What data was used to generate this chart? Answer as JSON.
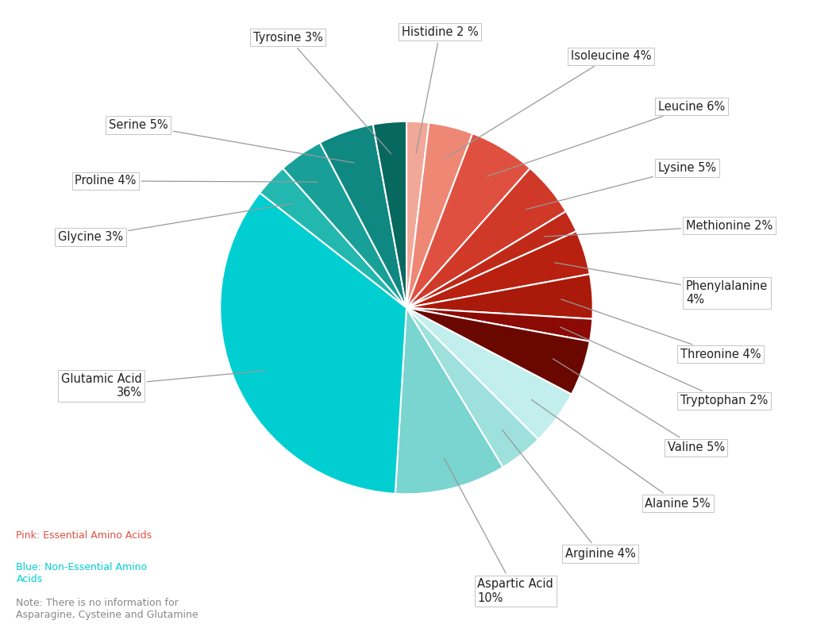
{
  "slices": [
    {
      "label": "Histidine 2 %",
      "value": 2,
      "color": "#F2A899",
      "type": "essential"
    },
    {
      "label": "Isoleucine 4%",
      "value": 4,
      "color": "#EE8875",
      "type": "essential"
    },
    {
      "label": "Leucine 6%",
      "value": 6,
      "color": "#E05040",
      "type": "essential"
    },
    {
      "label": "Lysine 5%",
      "value": 5,
      "color": "#D03828",
      "type": "essential"
    },
    {
      "label": "Methionine 2%",
      "value": 2,
      "color": "#C02818",
      "type": "essential"
    },
    {
      "label": "Phenylalanine\n4%",
      "value": 4,
      "color": "#B82010",
      "type": "essential"
    },
    {
      "label": "Threonine 4%",
      "value": 4,
      "color": "#AA1A0A",
      "type": "essential"
    },
    {
      "label": "Tryptophan 2%",
      "value": 2,
      "color": "#8B0A05",
      "type": "essential"
    },
    {
      "label": "Valine 5%",
      "value": 5,
      "color": "#6A0800",
      "type": "essential"
    },
    {
      "label": "Alanine 5%",
      "value": 5,
      "color": "#C2EFEE",
      "type": "non-essential"
    },
    {
      "label": "Arginine 4%",
      "value": 4,
      "color": "#9EE0DC",
      "type": "non-essential"
    },
    {
      "label": "Aspartic Acid\n10%",
      "value": 10,
      "color": "#7AD4D0",
      "type": "non-essential"
    },
    {
      "label": "Glutamic Acid\n36%",
      "value": 36,
      "color": "#00CED1",
      "type": "non-essential"
    },
    {
      "label": "Glycine 3%",
      "value": 3,
      "color": "#22B8B0",
      "type": "non-essential"
    },
    {
      "label": "Proline 4%",
      "value": 4,
      "color": "#18A098",
      "type": "non-essential"
    },
    {
      "label": "Serine 5%",
      "value": 5,
      "color": "#0E8880",
      "type": "non-essential"
    },
    {
      "label": "Tyrosine 3%",
      "value": 3,
      "color": "#076860",
      "type": "non-essential"
    }
  ],
  "legend_pink_text": "Pink: Essential Amino Acids",
  "legend_blue_text": "Blue: Non-Essential Amino\nAcids",
  "note_text": "Note: There is no information for\nAsparagine, Cysteine and Glutamine",
  "legend_pink_color": "#E05040",
  "legend_blue_color": "#00CED1",
  "note_color": "#888888",
  "background_color": "#FFFFFF",
  "wedge_linewidth": 1.5,
  "wedge_linecolor": "#FFFFFF"
}
